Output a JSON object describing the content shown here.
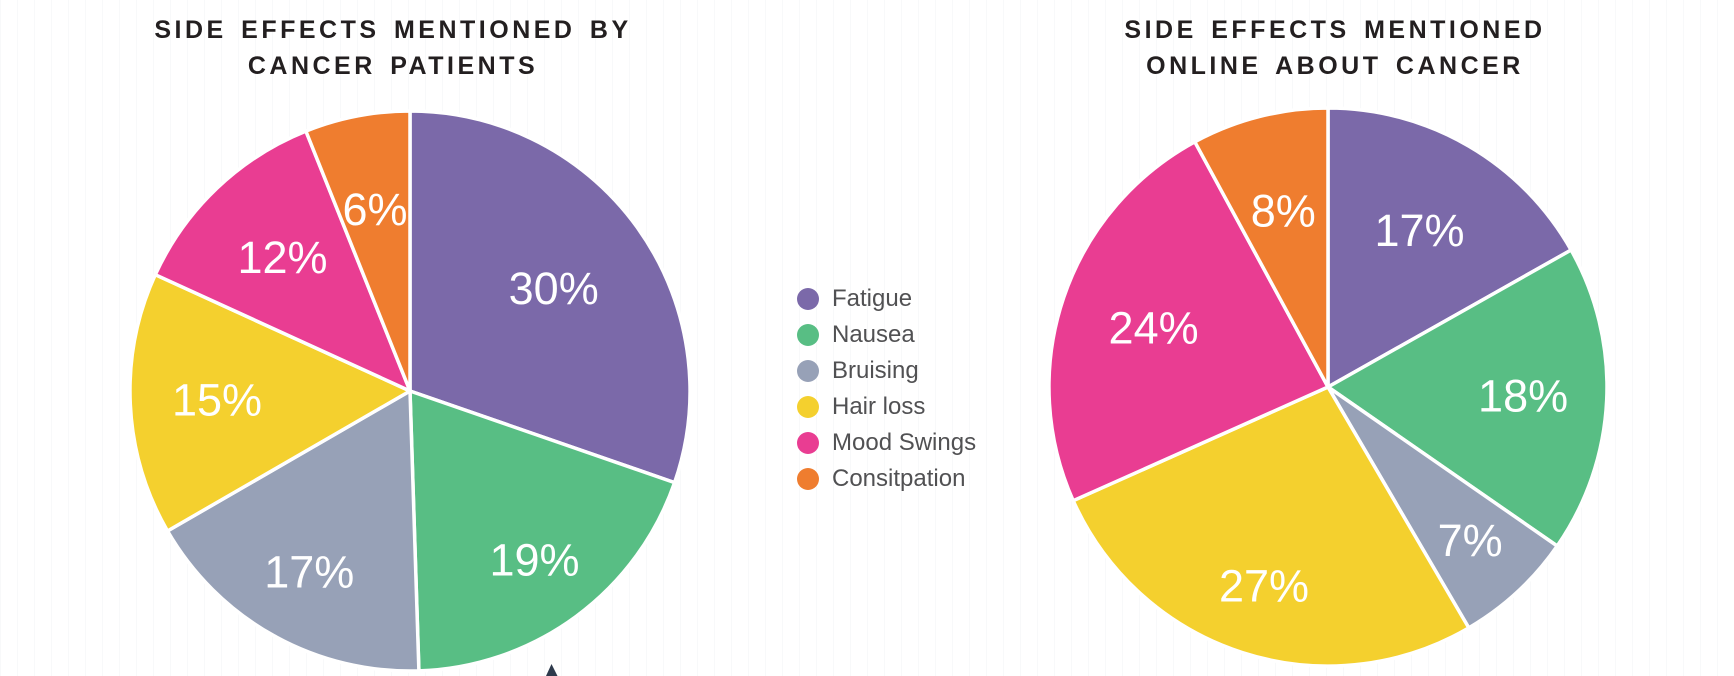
{
  "titles": {
    "left": [
      "SIDE EFFECTS MENTIONED BY",
      "CANCER PATIENTS"
    ],
    "right": [
      "SIDE EFFECTS MENTIONED",
      "ONLINE ABOUT CANCER"
    ]
  },
  "legend": {
    "items": [
      {
        "label": "Fatigue",
        "color": "#7B69A9"
      },
      {
        "label": "Nausea",
        "color": "#58BE84"
      },
      {
        "label": "Bruising",
        "color": "#97A1B7"
      },
      {
        "label": "Hair loss",
        "color": "#F4D02E"
      },
      {
        "label": "Mood Swings",
        "color": "#E93D92"
      },
      {
        "label": "Consitpation",
        "color": "#EF7D2F"
      }
    ]
  },
  "chart_data": [
    {
      "type": "pie",
      "title": "SIDE EFFECTS MENTIONED BY CANCER PATIENTS",
      "categories": [
        "Fatigue",
        "Nausea",
        "Bruising",
        "Hair loss",
        "Mood Swings",
        "Consitpation"
      ],
      "values": [
        30,
        19,
        17,
        15,
        12,
        6
      ],
      "labels": [
        "30%",
        "19%",
        "17%",
        "15%",
        "12%",
        "6%"
      ],
      "colors": [
        "#7B69A9",
        "#58BE84",
        "#97A1B7",
        "#F4D02E",
        "#E93D92",
        "#EF7D2F"
      ],
      "start_angle": "top",
      "direction": "clockwise",
      "label_color": "#ffffff",
      "legend_position": "center-between-charts"
    },
    {
      "type": "pie",
      "title": "SIDE EFFECTS MENTIONED ONLINE ABOUT CANCER",
      "categories": [
        "Fatigue",
        "Nausea",
        "Bruising",
        "Hair loss",
        "Mood Swings",
        "Consitpation"
      ],
      "values": [
        17,
        18,
        7,
        27,
        24,
        8
      ],
      "labels": [
        "17%",
        "18%",
        "7%",
        "27%",
        "24%",
        "8%"
      ],
      "colors": [
        "#7B69A9",
        "#58BE84",
        "#97A1B7",
        "#F4D02E",
        "#E93D92",
        "#EF7D2F"
      ],
      "start_angle": "top",
      "direction": "clockwise",
      "label_color": "#ffffff",
      "legend_position": "center-between-charts"
    }
  ],
  "decorations": {
    "pointer_color": "#2E3A4C",
    "title_color": "#231F20",
    "legend_text_color": "#515153"
  }
}
